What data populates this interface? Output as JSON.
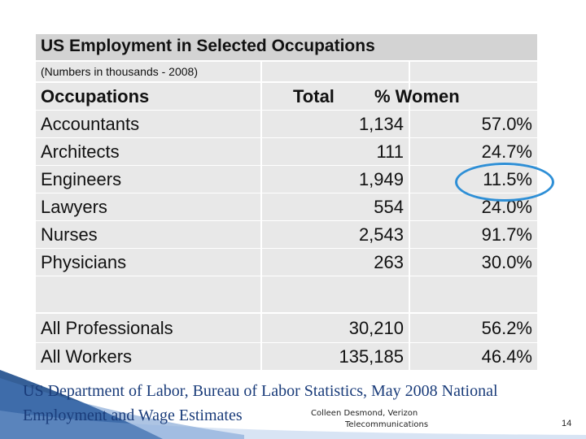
{
  "title": "US Employment in Selected Occupations",
  "subtitle": "(Numbers in thousands - 2008)",
  "headers": {
    "occupation": "Occupations",
    "total": "Total",
    "women": "% Women"
  },
  "rows": [
    {
      "occupation": "Accountants",
      "total": "1,134",
      "women": "57.0%"
    },
    {
      "occupation": "Architects",
      "total": "111",
      "women": "24.7%"
    },
    {
      "occupation": "Engineers",
      "total": "1,949",
      "women": "11.5%"
    },
    {
      "occupation": "Lawyers",
      "total": "554",
      "women": "24.0%"
    },
    {
      "occupation": "Nurses",
      "total": "2,543",
      "women": "91.7%"
    },
    {
      "occupation": "Physicians",
      "total": "263",
      "women": "30.0%"
    }
  ],
  "summary": [
    {
      "occupation": "All Professionals",
      "total": "30,210",
      "women": "56.2%"
    },
    {
      "occupation": "All Workers",
      "total": "135,185",
      "women": "46.4%"
    }
  ],
  "source": "US Department of Labor, Bureau of Labor Statistics, May 2008 National Employment and Wage Estimates",
  "watermark": {
    "line1": "Colleen Desmond, Verizon",
    "line2": "Telecommunications"
  },
  "page_number": "14",
  "colors": {
    "highlight_circle": "#2e8fd6",
    "source_text": "#1a3c7a",
    "cell_bg": "#e8e8e8",
    "title_bg": "#d3d3d3"
  }
}
